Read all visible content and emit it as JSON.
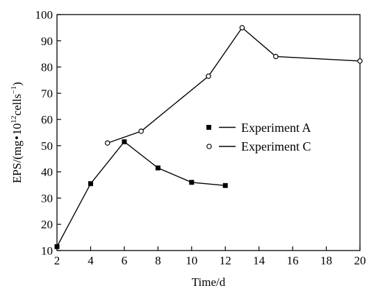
{
  "chart_data": {
    "type": "line",
    "xlabel": "Time/d",
    "ylabel_parts": {
      "prefix": "EPS/(mg",
      "dot": "•",
      "ten": "10",
      "exp12": "12",
      "cells": "cells",
      "expneg1": "−1",
      "close": ")"
    },
    "xlim": [
      2,
      20
    ],
    "ylim": [
      10,
      100
    ],
    "xticks": [
      2,
      4,
      6,
      8,
      10,
      12,
      14,
      16,
      18,
      20
    ],
    "yticks": [
      10,
      20,
      30,
      40,
      50,
      60,
      70,
      80,
      90,
      100
    ],
    "grid": false,
    "legend_position": "right-middle",
    "series": [
      {
        "name": "Experiment A",
        "marker": "filled-square",
        "color": "#000000",
        "x": [
          2,
          4,
          6,
          8,
          10,
          12
        ],
        "y": [
          11.5,
          35.5,
          51.5,
          41.5,
          36,
          34.8
        ]
      },
      {
        "name": "Experiment C",
        "marker": "open-circle",
        "color": "#000000",
        "x": [
          5,
          7,
          11,
          13,
          15,
          20
        ],
        "y": [
          51,
          55.5,
          76.5,
          95,
          84,
          82.3
        ]
      }
    ]
  }
}
